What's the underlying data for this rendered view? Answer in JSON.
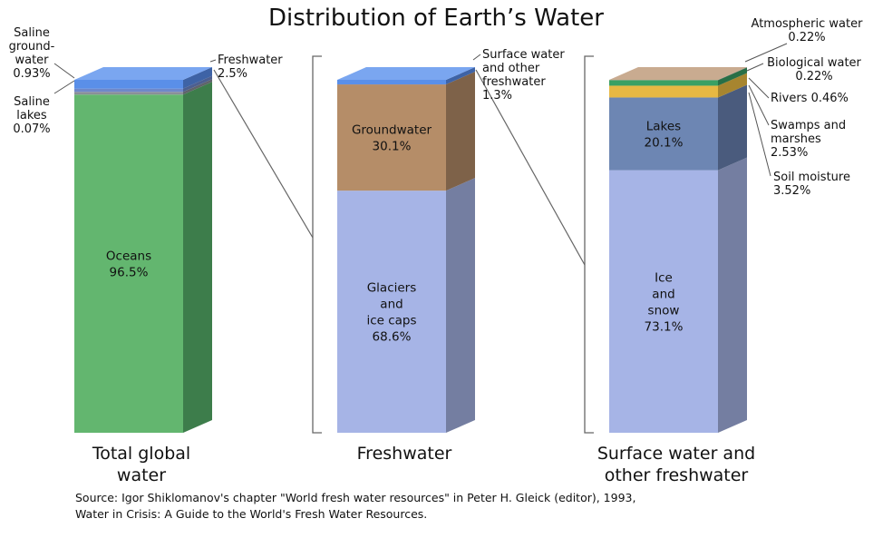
{
  "chart_data": {
    "type": "bar",
    "title": "Distribution of Earth’s Water",
    "stacks": [
      {
        "id": "total",
        "label_lines": [
          "Total global",
          "water"
        ],
        "segments": [
          {
            "name": "Oceans",
            "value": 96.5,
            "label_lines": [
              "Oceans",
              "96.5%"
            ],
            "color": "#63b66f",
            "side": "#3d7d4b",
            "top": "#5a8fe8"
          },
          {
            "name": "Saline lakes",
            "value": 0.07,
            "color": "#8a8f98",
            "side": "#5f636a",
            "top": "#5a8fe8",
            "callout": {
              "lines": [
                "Saline",
                "lakes",
                "0.07%"
              ],
              "pos": "left"
            }
          },
          {
            "name": "Saline groundwater",
            "value": 0.93,
            "color": "#6f88c9",
            "side": "#4d5f8f",
            "top": "#5a8fe8",
            "callout": {
              "lines": [
                "Saline",
                "ground-",
                "water",
                "0.93%"
              ],
              "pos": "left"
            }
          },
          {
            "name": "Freshwater",
            "value": 2.5,
            "color": "#5a8fe8",
            "side": "#3e63a6",
            "top": "#7aa6f0",
            "callout": {
              "lines": [
                "Freshwater",
                "2.5%"
              ],
              "pos": "right"
            }
          }
        ]
      },
      {
        "id": "fresh",
        "label_lines": [
          "Freshwater"
        ],
        "segments": [
          {
            "name": "Glaciers and ice caps",
            "value": 68.6,
            "label_lines": [
              "Glaciers",
              "and",
              "ice caps",
              "68.6%"
            ],
            "color": "#a6b4e6",
            "side": "#747ea1",
            "top": "#5a8fe8"
          },
          {
            "name": "Groundwater",
            "value": 30.1,
            "label_lines": [
              "Groundwater",
              "30.1%"
            ],
            "color": "#b58d68",
            "side": "#7e6249",
            "top": "#5a8fe8"
          },
          {
            "name": "Surface water and other freshwater",
            "value": 1.3,
            "color": "#5a8fe8",
            "side": "#3e63a6",
            "top": "#7aa6f0",
            "callout": {
              "lines": [
                "Surface water",
                "and other",
                "freshwater",
                "1.3%"
              ],
              "pos": "right"
            }
          }
        ]
      },
      {
        "id": "surface",
        "label_lines": [
          "Surface water and",
          "other freshwater"
        ],
        "segments": [
          {
            "name": "Ice and snow",
            "value": 73.1,
            "label_lines": [
              "Ice",
              "and",
              "snow",
              "73.1%"
            ],
            "color": "#a6b4e6",
            "side": "#747ea1",
            "top": "#c9ab90"
          },
          {
            "name": "Lakes",
            "value": 20.1,
            "label_lines": [
              "Lakes",
              "20.1%"
            ],
            "color": "#6d86b3",
            "side": "#4a5b7d",
            "top": "#c9ab90"
          },
          {
            "name": "Soil moisture",
            "value": 3.52,
            "color": "#e7b843",
            "side": "#a7852f",
            "top": "#c9ab90",
            "callout": {
              "lines": [
                "Soil moisture",
                "3.52%"
              ],
              "pos": "right"
            }
          },
          {
            "name": "Swamps and marshes",
            "value": 2.53,
            "color": "#3aa064",
            "side": "#286f46",
            "top": "#c9ab90",
            "callout": {
              "lines": [
                "Swamps and",
                "marshes",
                "2.53%"
              ],
              "pos": "right"
            }
          },
          {
            "name": "Rivers",
            "value": 0.46,
            "color": "#3b7d5e",
            "side": "#285743",
            "top": "#c9ab90",
            "callout": {
              "lines": [
                "Rivers  0.46%"
              ],
              "pos": "right"
            }
          },
          {
            "name": "Biological water",
            "value": 0.22,
            "color": "#8a6a4a",
            "side": "#5f4a34",
            "top": "#c9ab90",
            "callout": {
              "lines": [
                "Biological water",
                "0.22%"
              ],
              "pos": "right"
            }
          },
          {
            "name": "Atmospheric water",
            "value": 0.22,
            "color": "#c9ab90",
            "side": "#8b7664",
            "top": "#c9ab90",
            "callout": {
              "lines": [
                "Atmospheric water",
                "0.22%"
              ],
              "pos": "right"
            }
          }
        ]
      }
    ]
  },
  "source": {
    "line1": "Source: Igor Shiklomanov's chapter \"World fresh water resources\" in Peter H. Gleick (editor), 1993,",
    "line2": "Water in Crisis: A Guide to the World's Fresh Water Resources."
  }
}
